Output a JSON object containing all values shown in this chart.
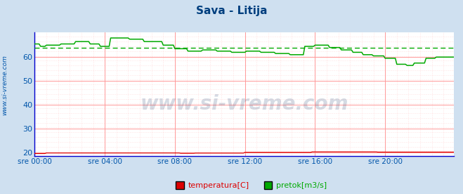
{
  "title": "Sava - Litija",
  "title_color": "#003f7f",
  "bg_color": "#cfe0f0",
  "plot_bg_color": "#ffffff",
  "grid_color_major": "#ff9999",
  "grid_color_minor": "#ffcccc",
  "ylabel_color": "#0055aa",
  "xlabel_color": "#0055aa",
  "ylabel_text": "www.si-vreme.com",
  "xlim": [
    0,
    287
  ],
  "ylim": [
    18.5,
    70.5
  ],
  "yticks": [
    20,
    30,
    40,
    50,
    60
  ],
  "xtick_labels": [
    "sre 00:00",
    "sre 04:00",
    "sre 08:00",
    "sre 12:00",
    "sre 16:00",
    "sre 20:00"
  ],
  "xtick_positions": [
    0,
    48,
    96,
    144,
    192,
    240
  ],
  "temp_color": "#dd0000",
  "flow_color": "#00aa00",
  "avg_color": "#00aa00",
  "legend_temp_label": "temperatura[C]",
  "legend_flow_label": "pretok[m3/s]",
  "watermark": "www.si-vreme.com",
  "watermark_color": "#1a3a6a",
  "avg_value": 64.0,
  "spine_color": "#0000cc",
  "fig_width": 6.59,
  "fig_height": 2.76,
  "dpi": 100
}
